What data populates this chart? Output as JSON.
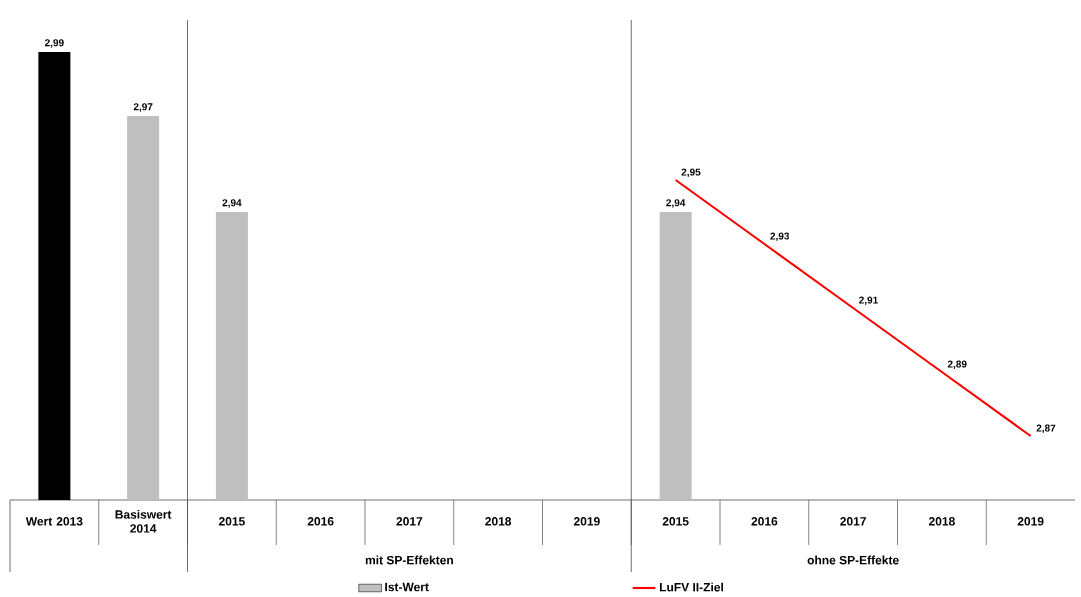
{
  "chart_data": {
    "type": "bar",
    "categories": [
      "Wert 2013",
      "Basiswert 2014",
      "2015",
      "2016",
      "2017",
      "2018",
      "2019",
      "2015",
      "2016",
      "2017",
      "2018",
      "2019"
    ],
    "series": [
      {
        "name": "Ist-Wert",
        "color": "#bfbfbf",
        "colors": [
          "#000000",
          "#bfbfbf",
          "#bfbfbf",
          "#bfbfbf",
          "#bfbfbf",
          "#bfbfbf",
          "#bfbfbf",
          "#bfbfbf",
          "#bfbfbf",
          "#bfbfbf",
          "#bfbfbf",
          "#bfbfbf"
        ],
        "values": [
          2.99,
          2.97,
          2.94,
          null,
          null,
          null,
          null,
          2.94,
          null,
          null,
          null,
          null
        ],
        "value_labels": [
          "2,99",
          "2,97",
          "2,94",
          null,
          null,
          null,
          null,
          "2,94",
          null,
          null,
          null,
          null
        ]
      },
      {
        "name": "LuFV II-Ziel",
        "type": "line",
        "color": "#ff0000",
        "values": [
          null,
          null,
          null,
          null,
          null,
          null,
          null,
          2.95,
          2.93,
          2.91,
          2.89,
          2.87
        ],
        "value_labels": [
          null,
          null,
          null,
          null,
          null,
          null,
          null,
          "2,95",
          "2,93",
          "2,91",
          "2,89",
          "2,87"
        ]
      }
    ],
    "ylim": [
      2.85,
      3.0
    ],
    "tick_labels": "x",
    "legend": "bottom",
    "annotations": [
      "mit SP-Effekten",
      "ohne SP-Effekte"
    ]
  }
}
